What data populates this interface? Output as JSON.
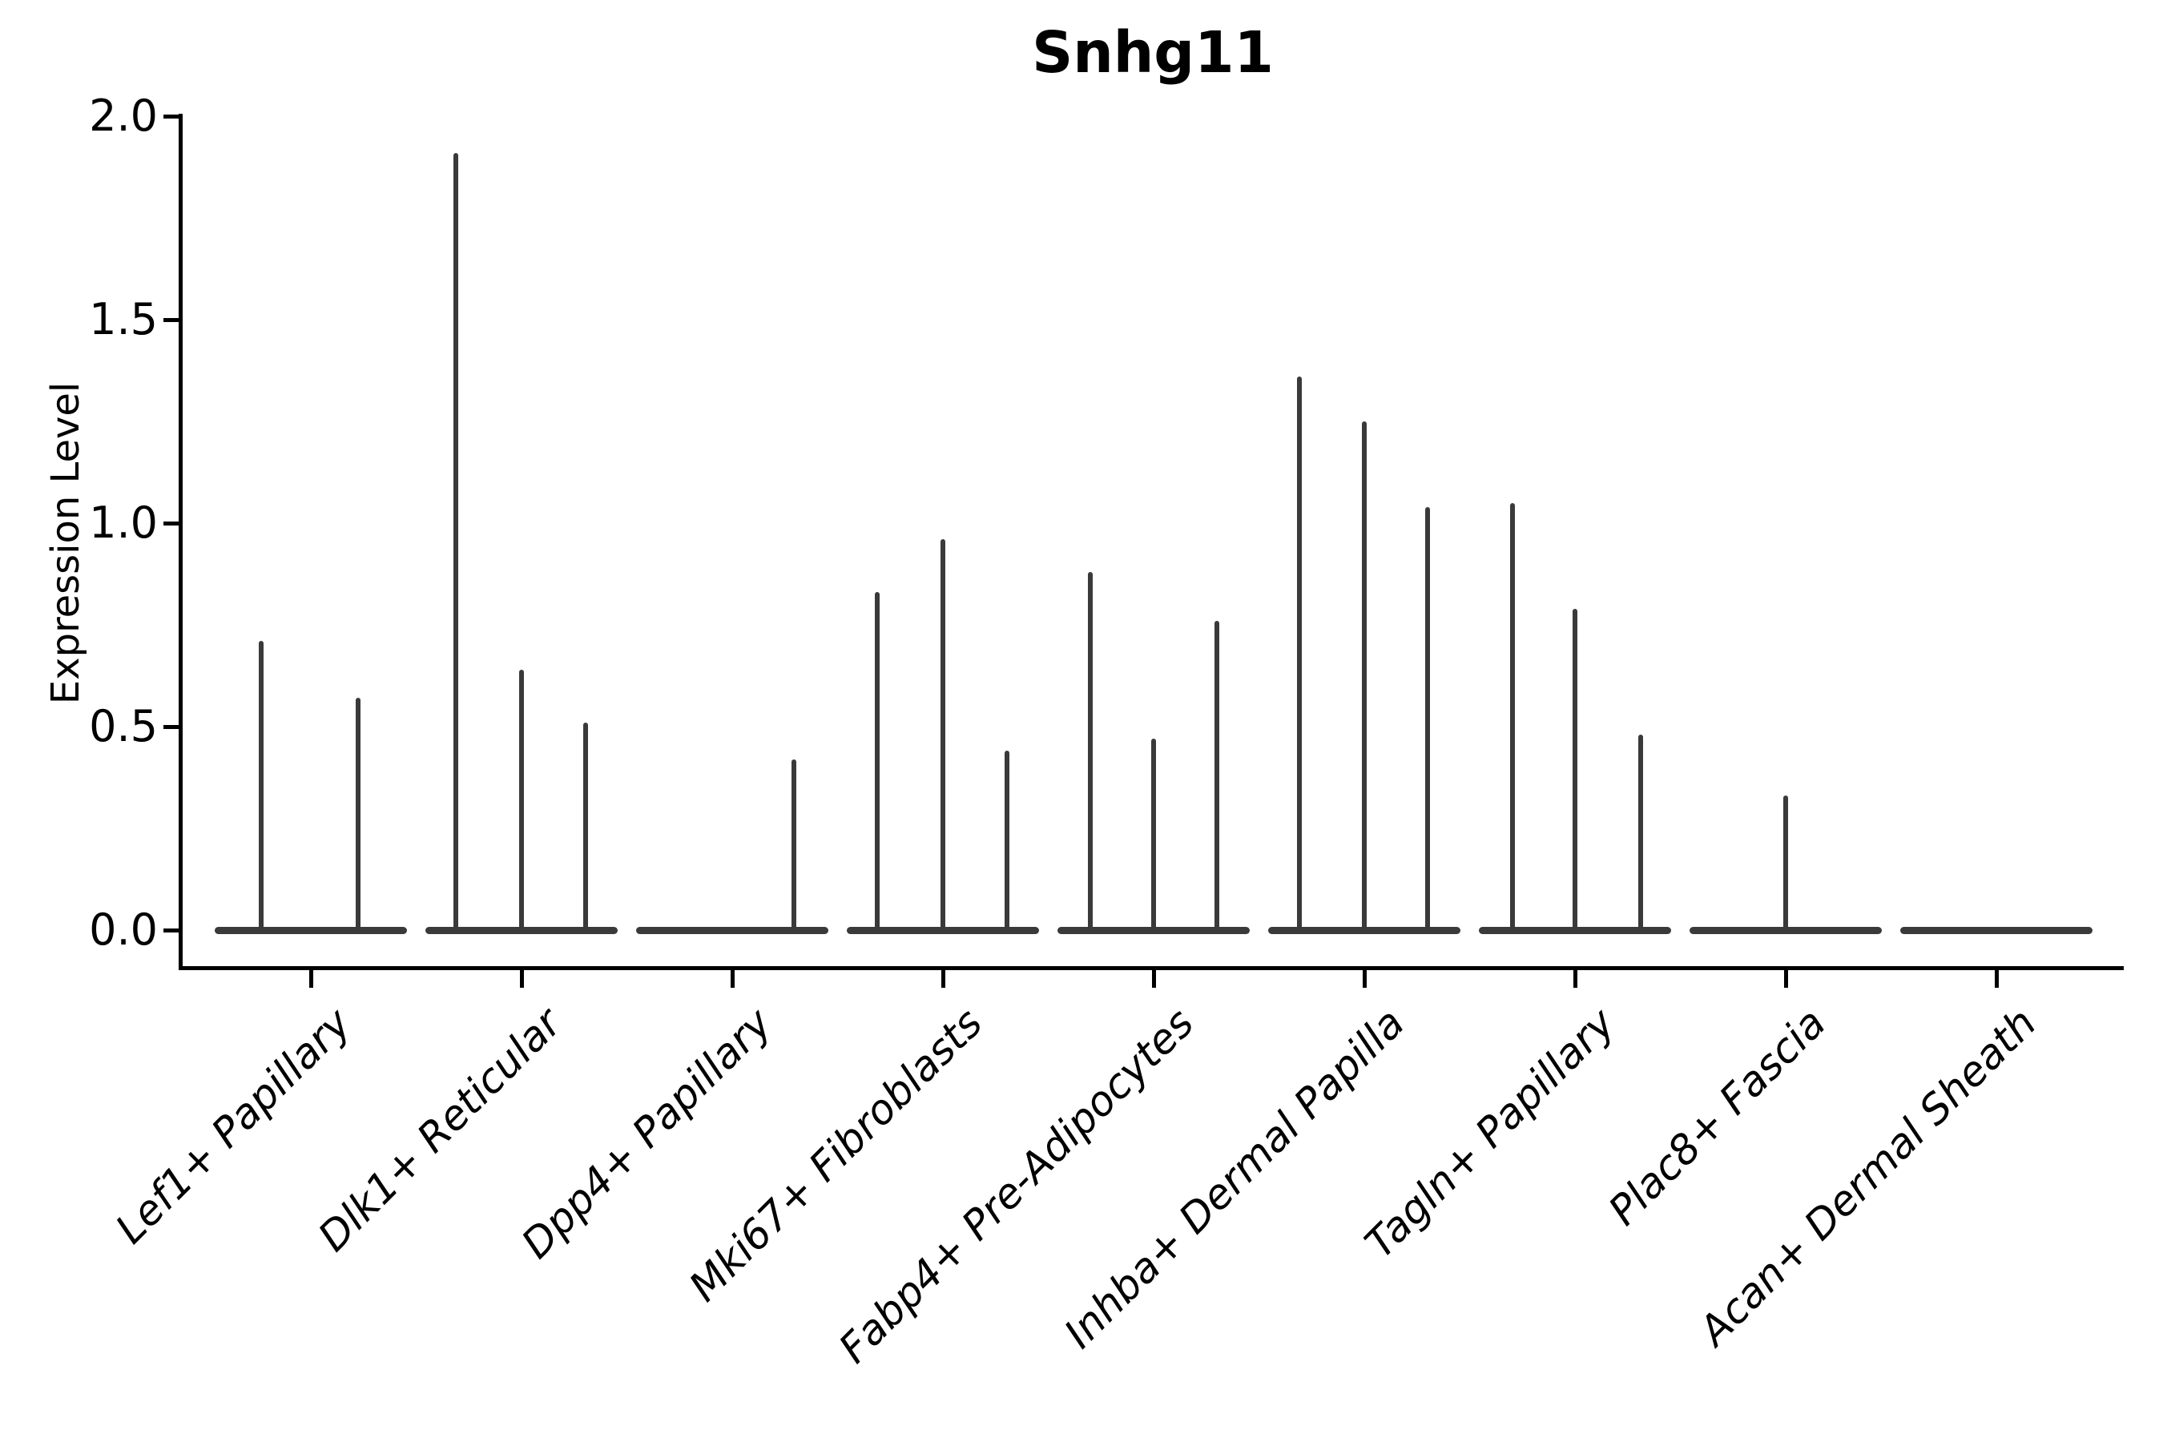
{
  "title": "Snhg11",
  "y_axis": {
    "label": "Expression Level",
    "tick_labels": [
      "2.0",
      "1.5",
      "1.0",
      "0.5",
      "0.0"
    ]
  },
  "colors": {
    "violin": "#3a3a3a",
    "axis": "#000000",
    "background": "#ffffff",
    "text": "#000000"
  },
  "chart_data": {
    "type": "violin",
    "title": "Snhg11",
    "xlabel": "",
    "ylabel": "Expression Level",
    "ylim": [
      0,
      2.0
    ],
    "yticks": [
      0.0,
      0.5,
      1.0,
      1.5,
      2.0
    ],
    "grid": false,
    "legend_position": "none",
    "style": "spike-like violins (most values at 0) with a thick flat base at y=0 and thin vertical max-expression spikes, up to 3 dodged sub-violins per cell type",
    "categories": [
      "Lef1+ Papillary",
      "Dlk1+ Reticular",
      "Dpp4+ Papillary",
      "Mki67+ Fibroblasts",
      "Fabp4+ Pre-Adipocytes",
      "Inhba+ Dermal Papilla",
      "Tagln+ Papillary",
      "Plac8+ Fascia",
      "Acan+ Dermal Sheath"
    ],
    "violins": [
      {
        "category": "Lef1+ Papillary",
        "spikes": [
          {
            "x_offset": -62,
            "max": 0.71
          },
          {
            "x_offset": 59,
            "max": 0.57
          }
        ]
      },
      {
        "category": "Dlk1+ Reticular",
        "spikes": [
          {
            "x_offset": -82,
            "max": 1.91
          },
          {
            "x_offset": 0,
            "max": 0.64
          },
          {
            "x_offset": 80,
            "max": 0.51
          }
        ]
      },
      {
        "category": "Dpp4+ Papillary",
        "spikes": [
          {
            "x_offset": 77,
            "max": 0.42
          }
        ]
      },
      {
        "category": "Mki67+ Fibroblasts",
        "spikes": [
          {
            "x_offset": -82,
            "max": 0.83
          },
          {
            "x_offset": 0,
            "max": 0.96
          },
          {
            "x_offset": 80,
            "max": 0.44
          }
        ]
      },
      {
        "category": "Fabp4+ Pre-Adipocytes",
        "spikes": [
          {
            "x_offset": -79,
            "max": 0.88
          },
          {
            "x_offset": 0,
            "max": 0.47
          },
          {
            "x_offset": 79,
            "max": 0.76
          }
        ]
      },
      {
        "category": "Inhba+ Dermal Papilla",
        "spikes": [
          {
            "x_offset": -81,
            "max": 1.36
          },
          {
            "x_offset": 0,
            "max": 1.25
          },
          {
            "x_offset": 79,
            "max": 1.04
          }
        ]
      },
      {
        "category": "Tagln+ Papillary",
        "spikes": [
          {
            "x_offset": -78,
            "max": 1.05
          },
          {
            "x_offset": 0,
            "max": 0.79
          },
          {
            "x_offset": 82,
            "max": 0.48
          }
        ]
      },
      {
        "category": "Plac8+ Fascia",
        "spikes": [
          {
            "x_offset": 0,
            "max": 0.33
          }
        ]
      },
      {
        "category": "Acan+ Dermal Sheath",
        "spikes": []
      }
    ]
  }
}
